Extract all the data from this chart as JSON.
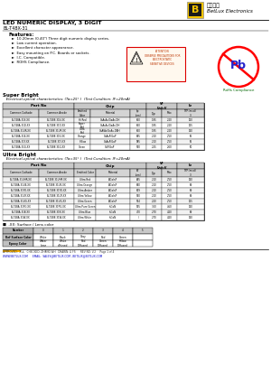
{
  "title_main": "LED NUMERIC DISPLAY, 3 DIGIT",
  "part_number": "BL-T48X-31",
  "company_chinese": "百流光电",
  "company_english": "BetLux Electronics",
  "features_title": "Features:",
  "features": [
    "10.20mm (0.40\") Three digit numeric display series.",
    "Low current operation.",
    "Excellent character appearance.",
    "Easy mounting on P.C. Boards or sockets.",
    "I.C. Compatible.",
    "ROHS Compliance."
  ],
  "attention_text": "ATTENTION\nOBSERVE PRECAUTIONS FOR\nELECTROSTATIC\nSENSITIVE DEVICES",
  "super_bright_title": "Super Bright",
  "super_bright_subtitle": "   Electrical-optical characteristics: (Ta=25° )  (Test Condition: IF=20mA)",
  "super_bright_rows": [
    [
      "BL-T48A-31S-XX",
      "BL-T488-31S-XX",
      "Hi Red",
      "GaAsAs/GaAs.DH",
      "660",
      "1.85",
      "2.20",
      "120"
    ],
    [
      "BL-T48A-31D-XX",
      "BL-T488-31D-XX",
      "Super\nRed",
      "GaAsAs/GaAs.DH",
      "660",
      "1.85",
      "2.20",
      "125"
    ],
    [
      "BL-T48A-31UR-XX",
      "BL-T488-31UR-XX",
      "Ultra\nRed",
      "GaAlAs/GaAs.DBH",
      "660",
      "1.85",
      "2.20",
      "130"
    ],
    [
      "BL-T48A-31E-XX",
      "BL-T488-31E-XX",
      "Orange",
      "GaAsP/GaP",
      "635",
      "2.10",
      "2.50",
      "65"
    ],
    [
      "BL-T48A-31Y-XX",
      "BL-T488-31Y-XX",
      "Yellow",
      "GaAsP/GaP",
      "585",
      "2.10",
      "2.50",
      "65"
    ],
    [
      "BL-T48A-31G-XX",
      "BL-T488-31G-XX",
      "Green",
      "GaP/GaP",
      "570",
      "2.25",
      "2.60",
      "50"
    ]
  ],
  "ultra_bright_title": "Ultra Bright",
  "ultra_bright_subtitle": "   Electrical-optical characteristics: (Ta=35° )  (Test Condition: IF=20mA)",
  "ultra_bright_rows": [
    [
      "BL-T48A-31UHR-XX",
      "BL-T488-31UHR-XX",
      "Ultra Red",
      "AlGaInP",
      "645",
      "2.10",
      "2.50",
      "130"
    ],
    [
      "BL-T48A-31UE-XX",
      "BL-T488-31UE-XX",
      "Ultra Orange",
      "AlGaInP",
      "630",
      "2.10",
      "2.50",
      "90"
    ],
    [
      "BL-T48A-31YO-XX",
      "BL-T488-31YO-XX",
      "Ultra Amber",
      "AlGaInP",
      "619",
      "2.10",
      "2.50",
      "90"
    ],
    [
      "BL-T48A-31UY-XX",
      "BL-T488-31UY-XX",
      "Ultra Yellow",
      "AlGaInP",
      "590",
      "2.10",
      "2.50",
      "90"
    ],
    [
      "BL-T48A-31UG-XX",
      "BL-T488-31UG-XX",
      "Ultra Green",
      "AlGaInP",
      "574",
      "2.20",
      "2.50",
      "125"
    ],
    [
      "BL-T48A-31PG-XX",
      "BL-T488-31PG-XX",
      "Ultra Pure Green",
      "InGaN",
      "525",
      "3.60",
      "4.50",
      "130"
    ],
    [
      "BL-T48A-31B-XX",
      "BL-T488-31B-XX",
      "Ultra Blue",
      "InGaN",
      "470",
      "2.70",
      "4.20",
      "90"
    ],
    [
      "BL-T48A-31W-XX",
      "BL-T488-31W-XX",
      "Ultra White",
      "InGaN",
      "/",
      "2.70",
      "4.20",
      "130"
    ]
  ],
  "surface_note": "-XX: Surface / Lens color",
  "number_row": [
    "Number",
    "0",
    "1",
    "2",
    "3",
    "4",
    "5"
  ],
  "surface_row": [
    "Ref Surface Color",
    "White",
    "Black",
    "Gray",
    "Red",
    "Green",
    ""
  ],
  "epoxy_row": [
    "Epoxy Color",
    "Water\nclear",
    "White\ndiffused",
    "Red\nDiffused",
    "Green\nDiffused",
    "Yellow\nDiffused",
    ""
  ],
  "footer_line1": "APPROVED:  XUL   CHECKED: ZHANG WH   DRAWN: LI FS      REV NO: V.2     Page 1 of 4",
  "footer_line2": "WWW.BETLUX.COM      EMAIL:  SALES@BETLUX.COM , BETLUX@BETLUX.COM",
  "bg_color": "#ffffff"
}
